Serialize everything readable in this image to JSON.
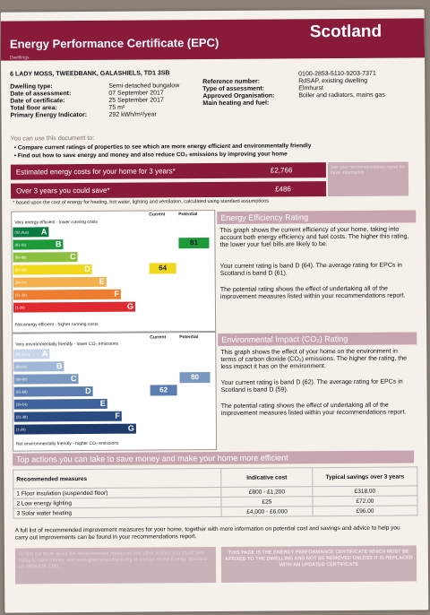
{
  "header": {
    "title": "Energy Performance Certificate (EPC)",
    "country": "Scotland",
    "dwellings_label": "Dwellings"
  },
  "address": "6 LADY MOSS, TWEEDBANK, GALASHIELS, TD1 3SB",
  "details_left": [
    {
      "label": "Dwelling type:",
      "value": "Semi-detached bungalow"
    },
    {
      "label": "Date of assessment:",
      "value": "07 September 2017"
    },
    {
      "label": "Date of certificate:",
      "value": "25 September 2017"
    },
    {
      "label": "Total floor area:",
      "value": "75 m²"
    },
    {
      "label": "Primary Energy Indicator:",
      "value": "292 kWh/m²/year"
    }
  ],
  "details_right": [
    {
      "label": "Reference number:",
      "value": "0100-2853-5110-9203-7371"
    },
    {
      "label": "Type of assessment:",
      "value": "RdSAP, existing dwelling"
    },
    {
      "label": "Approved Organisation:",
      "value": "Elmhurst"
    },
    {
      "label": "Main heating and fuel:",
      "value": "Boiler and radiators, mains gas"
    }
  ],
  "use_heading": "You can use this document to:",
  "bullets": [
    "Compare current ratings of properties to see which are more energy efficient and environmentally friendly",
    "Find out how to save energy and money and also reduce CO₂ emissions by improving your home"
  ],
  "costs": {
    "estimated_label": "Estimated energy costs for your home for 3 years*",
    "estimated_value": "£2,766",
    "over_label": "Over 3 years you could save*",
    "over_value": "£486",
    "side_note": "See your recommendations report for more information",
    "footnote": "* based upon the cost of energy for heating, hot water, lighting and ventilation, calculated using standard assumptions"
  },
  "eer": {
    "top_label": "Very energy efficient - lower running costs",
    "bottom_label": "Not energy efficient - higher running costs",
    "col_current": "Current",
    "col_potential": "Potential",
    "bands": [
      {
        "range": "(92 plus)",
        "letter": "A",
        "color": "#0a7a43"
      },
      {
        "range": "(81-91)",
        "letter": "B",
        "color": "#1d9b3a"
      },
      {
        "range": "(69-80)",
        "letter": "C",
        "color": "#8cbf3f"
      },
      {
        "range": "(55-68)",
        "letter": "D",
        "color": "#f2d81d"
      },
      {
        "range": "(39-54)",
        "letter": "E",
        "color": "#f4b04d"
      },
      {
        "range": "(21-38)",
        "letter": "F",
        "color": "#ee7d2f"
      },
      {
        "range": "(1-20)",
        "letter": "G",
        "color": "#e12a30"
      }
    ],
    "current": "64",
    "potential": "81",
    "heading": "Energy Efficiency Rating",
    "p1": "This graph shows the current efficiency of your home, taking into account both energy efficiency and fuel costs. The higher this rating, the lower your fuel bills are likely to be.",
    "p2": "Your current rating is band D (64). The average rating for EPCs in Scotland is band D (61).",
    "p3": "The potential rating shows the effect of undertaking all of the improvement measures listed within your recommendations report."
  },
  "eir": {
    "top_label": "Very environmentally friendly - lower CO₂ emissions",
    "bottom_label": "Not environmentally friendly - higher CO₂ emissions",
    "col_current": "Current",
    "col_potential": "Potential",
    "bands": [
      {
        "range": "(92 plus)",
        "letter": "A",
        "color": "#c9d6ea"
      },
      {
        "range": "(81-91)",
        "letter": "B",
        "color": "#9fb6d6"
      },
      {
        "range": "(69-80)",
        "letter": "C",
        "color": "#7a98c2"
      },
      {
        "range": "(55-68)",
        "letter": "D",
        "color": "#5a7cb0"
      },
      {
        "range": "(39-54)",
        "letter": "E",
        "color": "#3e6299"
      },
      {
        "range": "(21-38)",
        "letter": "F",
        "color": "#2b4c82"
      },
      {
        "range": "(1-20)",
        "letter": "G",
        "color": "#1e3a6a"
      }
    ],
    "current": "62",
    "potential": "80",
    "heading": "Environmental Impact (CO₂) Rating",
    "p1": "This graph shows the effect of your home on the environment in terms of carbon dioxide (CO₂) emissions. The higher the rating, the less impact it has on the environment.",
    "p2": "Your current rating is band D (62). The average rating for EPCs in Scotland is band D (59).",
    "p3": "The potential rating shows the effect of undertaking all of the improvement measures listed within your recommendations report."
  },
  "actions": {
    "heading": "Top actions you can take to save money and make your home more efficient",
    "columns": [
      "Recommended measures",
      "Indicative cost",
      "Typical savings over 3 years"
    ],
    "rows": [
      [
        "1 Floor insulation (suspended floor)",
        "£800 - £1,200",
        "£318.00"
      ],
      [
        "2 Low energy lighting",
        "£25",
        "£72.00"
      ],
      [
        "3 Solar water heating",
        "£4,000 - £6,000",
        "£96.00"
      ]
    ],
    "footer": "A full list of recommended improvement measures for your home, together with more information on potential cost and savings and advice to help you carry out improvements can be found in your recommendations report.",
    "box_left": "To find out more about the recommended measures and other actions you could take today to save money, visit www.greenerscotland.org or contact Home Energy Scotland on 0808 808 2282.",
    "box_right": "THIS PAGE IS THE ENERGY PERFORMANCE CERTIFICATE WHICH MUST BE AFFIXED TO THE DWELLING AND NOT BE REMOVED UNLESS IT IS REPLACED WITH AN UPDATED CERTIFICATE"
  }
}
